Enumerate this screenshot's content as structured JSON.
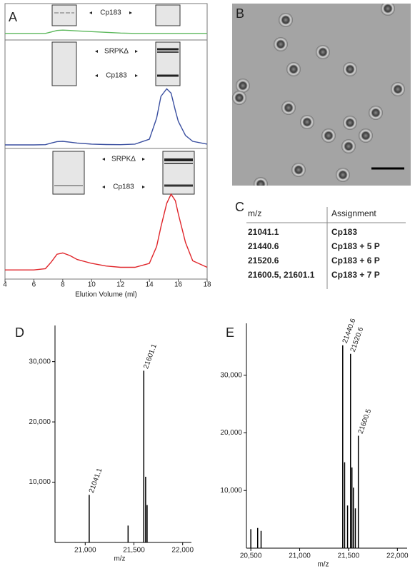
{
  "panel_labels": [
    "A",
    "B",
    "C",
    "D",
    "E"
  ],
  "table": {
    "columns": [
      "m/z",
      "Assignment"
    ],
    "rows": [
      [
        "21041.1",
        "Cp183"
      ],
      [
        "21440.6",
        "Cp183 + 5 P"
      ],
      [
        "21520.6",
        "Cp183 + 6 P"
      ],
      [
        "21600.5, 21601.1",
        "Cp183 + 7 P"
      ]
    ]
  },
  "chart_data": [
    {
      "type": "line",
      "xlabel": "Elution Volume (ml)",
      "xlim": [
        4,
        18
      ],
      "xticks": [
        4,
        6,
        8,
        10,
        12,
        14,
        16,
        18
      ],
      "annotations": [
        "Cp183",
        "SRPKΔ",
        "Cp183",
        "SRPKΔ",
        "Cp183"
      ],
      "ylim": [
        0,
        100
      ],
      "x": [
        4,
        6,
        6.8,
        7.2,
        7.6,
        8,
        8.5,
        9,
        10,
        11,
        12,
        13,
        14,
        14.5,
        14.8,
        15.2,
        15.5,
        15.8,
        16,
        16.5,
        17,
        18
      ],
      "series": [
        {
          "color": "#5cb85c",
          "values": [
            18,
            18,
            18,
            22,
            26,
            27,
            26,
            25,
            23,
            21,
            19,
            18,
            18,
            18,
            18,
            18,
            18,
            18,
            18,
            18,
            18,
            18
          ]
        },
        {
          "color": "#3a4fa0",
          "values": [
            3.3,
            3.3,
            3.5,
            5,
            6.3,
            6.6,
            5.8,
            5,
            4,
            3.6,
            3.5,
            4,
            8.5,
            28,
            48,
            55,
            51,
            35,
            25,
            12,
            6.6,
            4
          ]
        },
        {
          "color": "#e0262b",
          "values": [
            7,
            7,
            8,
            13,
            19,
            20,
            18,
            15,
            12,
            10,
            9,
            9,
            12,
            25,
            40,
            58,
            65,
            60,
            50,
            28,
            14,
            9
          ]
        }
      ]
    },
    {
      "type": "stem",
      "xlabel": "m/z",
      "color": "#000000",
      "xlim": [
        20690,
        22090
      ],
      "xticks": [
        {
          "value": 21000,
          "label": "21,000"
        },
        {
          "value": 21500,
          "label": "21,500"
        },
        {
          "value": 22000,
          "label": "22,000"
        }
      ],
      "ylim": [
        0,
        36000
      ],
      "yticks": [
        {
          "value": 10000,
          "label": "10,000"
        },
        {
          "value": 20000,
          "label": "20,000"
        },
        {
          "value": 30000,
          "label": "30,000"
        }
      ],
      "x": [
        21041.1,
        21440,
        21601.1,
        21620,
        21635
      ],
      "values": [
        7900,
        2800,
        28500,
        10900,
        6200
      ],
      "labels": [
        "21041.1",
        null,
        "21601.1",
        null,
        null
      ]
    },
    {
      "type": "stem",
      "xlabel": "m/z",
      "color": "#000000",
      "xlim": [
        20455,
        22100
      ],
      "xticks": [
        {
          "value": 20500,
          "label": "20,500"
        },
        {
          "value": 21000,
          "label": "21,000"
        },
        {
          "value": 21500,
          "label": "21,500"
        },
        {
          "value": 22000,
          "label": "22,000"
        }
      ],
      "ylim": [
        0,
        39000
      ],
      "yticks": [
        {
          "value": 10000,
          "label": "10,000"
        },
        {
          "value": 20000,
          "label": "20,000"
        },
        {
          "value": 30000,
          "label": "30,000"
        }
      ],
      "x": [
        20500,
        20570,
        20605,
        21440.6,
        21460,
        21490,
        21520.6,
        21535,
        21550,
        21570,
        21600.5
      ],
      "values": [
        3300,
        3500,
        3000,
        35200,
        14900,
        7400,
        33700,
        14000,
        10500,
        6900,
        19500
      ],
      "labels": [
        null,
        null,
        null,
        "21440.6",
        null,
        null,
        "21520.6",
        null,
        null,
        null,
        "21600.5"
      ]
    }
  ]
}
